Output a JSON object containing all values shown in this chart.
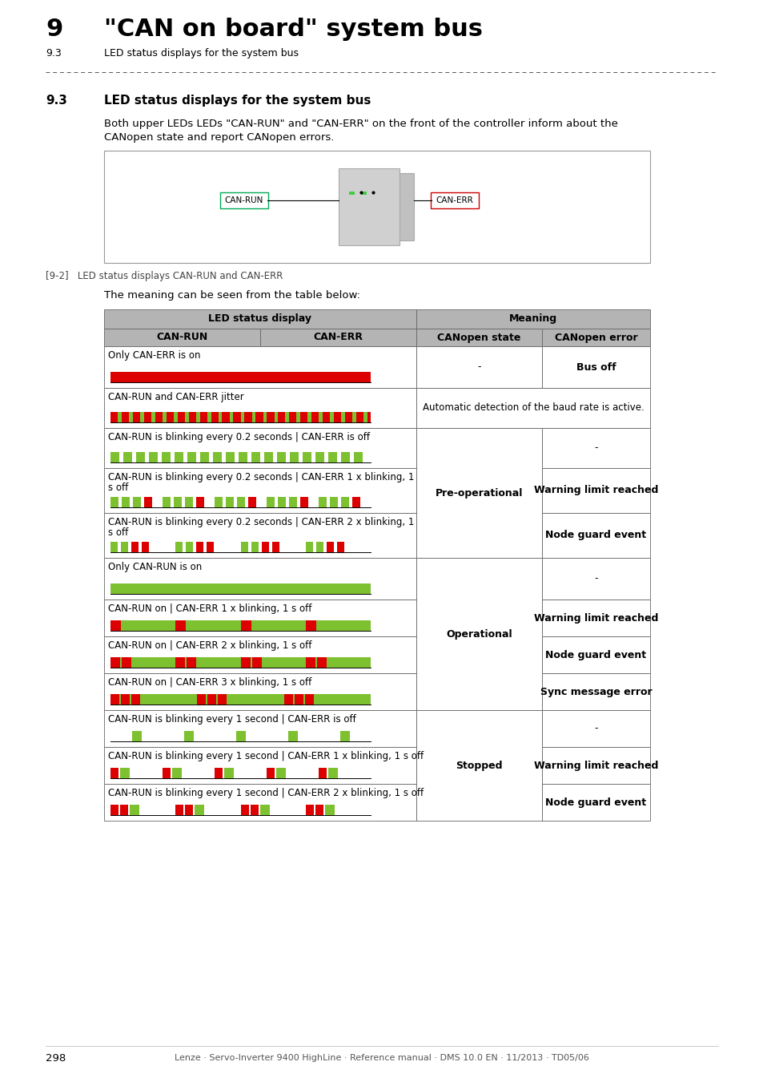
{
  "page_title_number": "9",
  "page_title_text": "\"CAN on board\" system bus",
  "page_subtitle_num": "9.3",
  "page_subtitle_text": "LED status displays for the system bus",
  "section_number": "9.3",
  "section_title": "LED status displays for the system bus",
  "body_line1": "Both upper LEDs LEDs \"CAN-RUN\" and \"CAN-ERR\" on the front of the controller inform about the",
  "body_line2": "CANopen state and report CANopen errors.",
  "fig_caption": "[9-2]   LED status displays CAN-RUN and CAN-ERR",
  "meaning_text": "The meaning can be seen from the table below:",
  "table_header_col1": "LED status display",
  "table_header_col1a": "CAN-RUN",
  "table_header_col1b": "CAN-ERR",
  "table_header_col2": "Meaning",
  "table_header_col2a": "CANopen state",
  "table_header_col2b": "CANopen error",
  "footer_text": "298",
  "footer_right": "Lenze · Servo-Inverter 9400 HighLine · Reference manual · DMS 10.0 EN · 11/2013 · TD05/06",
  "green": "#7dc030",
  "red": "#dd0000",
  "header_gray": "#b4b4b4",
  "table_rows": [
    {
      "led_desc": "Only CAN-ERR is on",
      "line2": "",
      "canopen_state": "-",
      "n_state_span": 1,
      "canopen_error": "Bus off",
      "bold_error": true,
      "pattern": "red_solid"
    },
    {
      "led_desc": "CAN-RUN and CAN-ERR jitter",
      "line2": "",
      "canopen_state": "auto",
      "n_state_span": 1,
      "canopen_error": "",
      "bold_error": false,
      "pattern": "jitter"
    },
    {
      "led_desc": "CAN-RUN is blinking every 0.2 seconds | CAN-ERR is off",
      "line2": "",
      "canopen_state": "Pre-operational",
      "n_state_span": 3,
      "canopen_error": "-",
      "bold_error": false,
      "pattern": "green_fast"
    },
    {
      "led_desc": "CAN-RUN is blinking every 0.2 seconds | CAN-ERR 1 x blinking, 1",
      "line2": "s off",
      "canopen_state": "",
      "n_state_span": 0,
      "canopen_error": "Warning limit reached",
      "bold_error": true,
      "pattern": "green_fast_red1"
    },
    {
      "led_desc": "CAN-RUN is blinking every 0.2 seconds | CAN-ERR 2 x blinking, 1",
      "line2": "s off",
      "canopen_state": "",
      "n_state_span": 0,
      "canopen_error": "Node guard event",
      "bold_error": true,
      "pattern": "green_fast_red2"
    },
    {
      "led_desc": "Only CAN-RUN is on",
      "line2": "",
      "canopen_state": "Operational",
      "n_state_span": 4,
      "canopen_error": "-",
      "bold_error": false,
      "pattern": "green_solid"
    },
    {
      "led_desc": "CAN-RUN on | CAN-ERR 1 x blinking, 1 s off",
      "line2": "",
      "canopen_state": "",
      "n_state_span": 0,
      "canopen_error": "Warning limit reached",
      "bold_error": true,
      "pattern": "green_solid_red1"
    },
    {
      "led_desc": "CAN-RUN on | CAN-ERR 2 x blinking, 1 s off",
      "line2": "",
      "canopen_state": "",
      "n_state_span": 0,
      "canopen_error": "Node guard event",
      "bold_error": true,
      "pattern": "green_solid_red2"
    },
    {
      "led_desc": "CAN-RUN on | CAN-ERR 3 x blinking, 1 s off",
      "line2": "",
      "canopen_state": "",
      "n_state_span": 0,
      "canopen_error": "Sync message error",
      "bold_error": true,
      "pattern": "green_solid_red3"
    },
    {
      "led_desc": "CAN-RUN is blinking every 1 second | CAN-ERR is off",
      "line2": "",
      "canopen_state": "Stopped",
      "n_state_span": 3,
      "canopen_error": "-",
      "bold_error": false,
      "pattern": "green_slow"
    },
    {
      "led_desc": "CAN-RUN is blinking every 1 second | CAN-ERR 1 x blinking, 1 s off",
      "line2": "",
      "canopen_state": "",
      "n_state_span": 0,
      "canopen_error": "Warning limit reached",
      "bold_error": true,
      "pattern": "green_slow_red1"
    },
    {
      "led_desc": "CAN-RUN is blinking every 1 second | CAN-ERR 2 x blinking, 1 s off",
      "line2": "",
      "canopen_state": "",
      "n_state_span": 0,
      "canopen_error": "Node guard event",
      "bold_error": true,
      "pattern": "green_slow_red2"
    }
  ]
}
